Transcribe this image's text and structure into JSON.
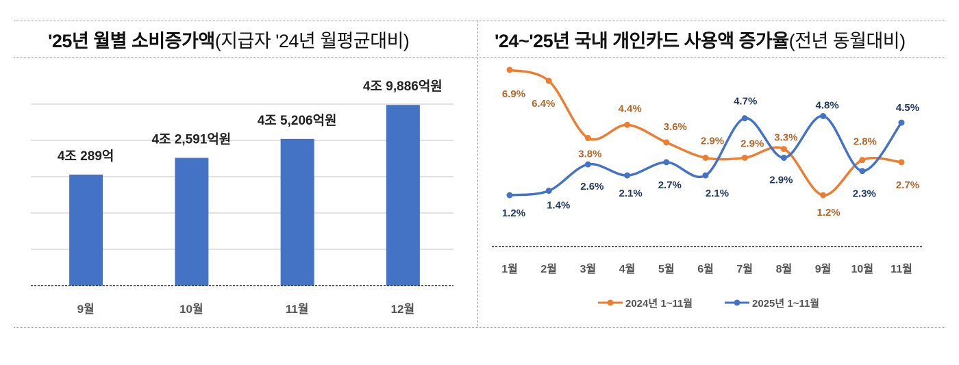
{
  "chart_data": [
    {
      "type": "bar",
      "title": "'25년 월별 소비증가액",
      "subtitle": "(지급자 '24년 월평균대비)",
      "categories": [
        "9월",
        "10월",
        "11월",
        "12월"
      ],
      "values": [
        40289,
        42591,
        45206,
        49886
      ],
      "data_labels": [
        "4조 289억",
        "4조 2,591억원",
        "4조 5,206억원",
        "4조 9,886억원"
      ],
      "ylim": [
        25000,
        50000
      ],
      "grid": true,
      "unit": "억원",
      "colors": {
        "bar": "#4472C4"
      }
    },
    {
      "type": "line",
      "title": "'24~'25년 국내 개인카드 사용액 증가율",
      "subtitle": "(전년 동월대비)",
      "categories": [
        "1월",
        "2월",
        "3월",
        "4월",
        "5월",
        "6월",
        "7월",
        "8월",
        "9월",
        "10월",
        "11월"
      ],
      "series": [
        {
          "name": "2024년 1~11월",
          "values": [
            6.9,
            6.4,
            3.8,
            4.4,
            3.6,
            2.9,
            2.9,
            3.3,
            1.2,
            2.8,
            2.7
          ],
          "color": "#ED7D31",
          "label_color": "#B5672A"
        },
        {
          "name": "2025년 1~11월",
          "values": [
            1.2,
            1.4,
            2.6,
            2.1,
            2.7,
            2.1,
            4.7,
            2.9,
            4.8,
            2.3,
            4.5
          ],
          "color": "#4472C4",
          "label_color": "#1F3864"
        }
      ],
      "unit": "%",
      "legend": "bottom",
      "smooth": true
    }
  ]
}
